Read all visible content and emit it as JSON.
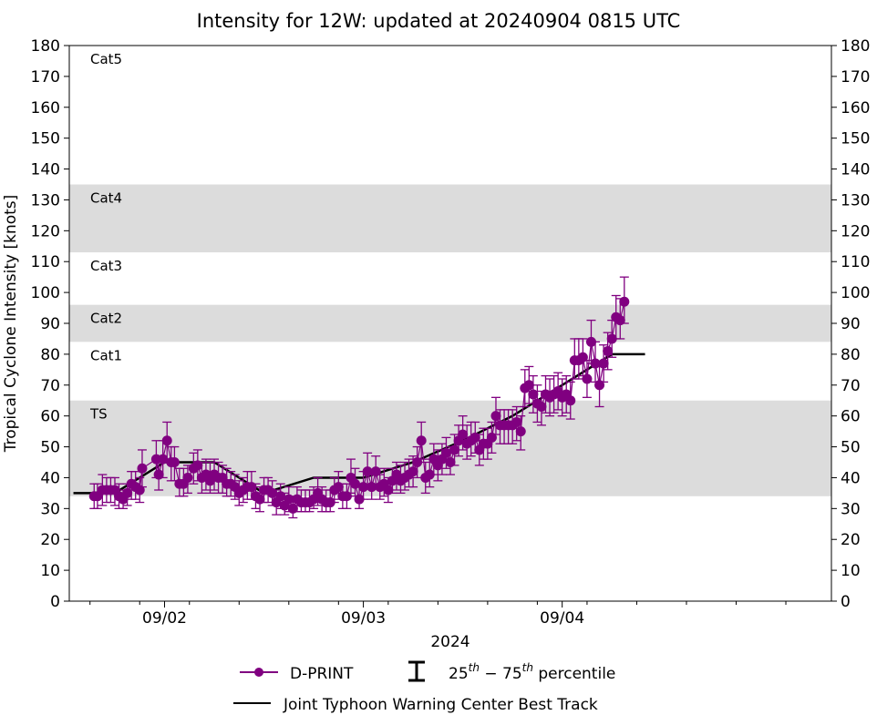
{
  "chart_data": {
    "type": "line",
    "title": "Intensity for 12W: updated at 20240904 0815 UTC",
    "xlabel": "2024",
    "ylabel": "Tropical Cyclone Intensity [knots]",
    "ylim": [
      0,
      180
    ],
    "yticks": [
      0,
      10,
      20,
      30,
      40,
      50,
      60,
      70,
      80,
      90,
      100,
      110,
      120,
      130,
      140,
      150,
      160,
      170,
      180
    ],
    "x_unit": "hours since 2024-09-01 00 UTC",
    "xlim": [
      12.5,
      104.5
    ],
    "xticks": [
      {
        "hour": 24,
        "label": "09/02"
      },
      {
        "hour": 48,
        "label": "09/03"
      },
      {
        "hour": 72,
        "label": "09/04"
      }
    ],
    "minor_xticks": [
      15,
      21,
      27,
      33,
      39,
      45,
      51,
      57,
      63,
      69,
      75,
      81,
      87,
      93,
      99,
      105
    ],
    "grid": false,
    "category_bands": [
      {
        "label": "TS",
        "min": 34,
        "max": 65,
        "shaded": true
      },
      {
        "label": "Cat1",
        "min": 65,
        "max": 84,
        "shaded": false
      },
      {
        "label": "Cat2",
        "min": 84,
        "max": 96,
        "shaded": true
      },
      {
        "label": "Cat3",
        "min": 96,
        "max": 113,
        "shaded": false
      },
      {
        "label": "Cat4",
        "min": 113,
        "max": 135,
        "shaded": true
      },
      {
        "label": "Cat5",
        "min": 135,
        "max": 180,
        "shaded": false
      }
    ],
    "band_color": "#dcdcdc",
    "legend": {
      "placement": "bottom-center",
      "entries": [
        {
          "label": "D-PRINT",
          "type": "line-marker"
        },
        {
          "label_main": "25",
          "label_sup1": "th",
          "label_mid": " − 75",
          "label_sup2": "th",
          "label_end": " percentile",
          "type": "errorbar"
        },
        {
          "label": "Joint Typhoon Warning Center Best Track",
          "type": "line"
        }
      ]
    },
    "series": [
      {
        "name": "Joint Typhoon Warning Center Best Track",
        "color": "#000000",
        "points": [
          [
            13,
            35
          ],
          [
            18,
            35
          ],
          [
            24,
            45
          ],
          [
            30,
            45
          ],
          [
            36,
            35
          ],
          [
            42,
            40
          ],
          [
            48,
            40
          ],
          [
            54,
            45
          ],
          [
            60,
            52
          ],
          [
            66,
            60
          ],
          [
            72,
            70
          ],
          [
            78,
            80
          ],
          [
            82,
            80
          ]
        ]
      },
      {
        "name": "D-PRINT",
        "color": "#800080",
        "points": [
          {
            "x": 15.5,
            "y": 34,
            "lo": 30,
            "hi": 38
          },
          {
            "x": 15.9,
            "y": 34,
            "lo": 30,
            "hi": 38
          },
          {
            "x": 16.5,
            "y": 36,
            "lo": 31,
            "hi": 41
          },
          {
            "x": 17.0,
            "y": 36,
            "lo": 32,
            "hi": 40
          },
          {
            "x": 17.5,
            "y": 36,
            "lo": 32,
            "hi": 40
          },
          {
            "x": 18.0,
            "y": 36,
            "lo": 31,
            "hi": 40
          },
          {
            "x": 18.5,
            "y": 34,
            "lo": 30,
            "hi": 38
          },
          {
            "x": 19.0,
            "y": 33,
            "lo": 30,
            "hi": 36
          },
          {
            "x": 19.5,
            "y": 35,
            "lo": 31,
            "hi": 38
          },
          {
            "x": 20.0,
            "y": 38,
            "lo": 33,
            "hi": 42
          },
          {
            "x": 20.5,
            "y": 37,
            "lo": 33,
            "hi": 42
          },
          {
            "x": 21.0,
            "y": 36,
            "lo": 32,
            "hi": 40
          },
          {
            "x": 21.3,
            "y": 43,
            "lo": 37,
            "hi": 49
          },
          {
            "x": 23.0,
            "y": 46,
            "lo": 40,
            "hi": 52
          },
          {
            "x": 23.3,
            "y": 41,
            "lo": 36,
            "hi": 46
          },
          {
            "x": 23.8,
            "y": 46,
            "lo": 40,
            "hi": 52
          },
          {
            "x": 24.3,
            "y": 52,
            "lo": 46,
            "hi": 58
          },
          {
            "x": 24.8,
            "y": 45,
            "lo": 39,
            "hi": 50
          },
          {
            "x": 25.2,
            "y": 45,
            "lo": 39,
            "hi": 50
          },
          {
            "x": 25.8,
            "y": 38,
            "lo": 34,
            "hi": 43
          },
          {
            "x": 26.3,
            "y": 38,
            "lo": 34,
            "hi": 43
          },
          {
            "x": 26.8,
            "y": 40,
            "lo": 35,
            "hi": 44
          },
          {
            "x": 27.5,
            "y": 43,
            "lo": 38,
            "hi": 48
          },
          {
            "x": 28.0,
            "y": 44,
            "lo": 39,
            "hi": 49
          },
          {
            "x": 28.5,
            "y": 40,
            "lo": 35,
            "hi": 45
          },
          {
            "x": 29.0,
            "y": 41,
            "lo": 36,
            "hi": 46
          },
          {
            "x": 29.5,
            "y": 39,
            "lo": 35,
            "hi": 45
          },
          {
            "x": 30.0,
            "y": 41,
            "lo": 36,
            "hi": 46
          },
          {
            "x": 30.5,
            "y": 40,
            "lo": 35,
            "hi": 45
          },
          {
            "x": 31.0,
            "y": 40,
            "lo": 35,
            "hi": 44
          },
          {
            "x": 31.5,
            "y": 38,
            "lo": 34,
            "hi": 43
          },
          {
            "x": 32.0,
            "y": 38,
            "lo": 34,
            "hi": 42
          },
          {
            "x": 32.5,
            "y": 37,
            "lo": 33,
            "hi": 41
          },
          {
            "x": 33.0,
            "y": 35,
            "lo": 31,
            "hi": 39
          },
          {
            "x": 33.5,
            "y": 36,
            "lo": 32,
            "hi": 40
          },
          {
            "x": 34.0,
            "y": 37,
            "lo": 33,
            "hi": 42
          },
          {
            "x": 34.5,
            "y": 37,
            "lo": 33,
            "hi": 42
          },
          {
            "x": 35.0,
            "y": 34,
            "lo": 30,
            "hi": 38
          },
          {
            "x": 35.5,
            "y": 33,
            "lo": 29,
            "hi": 37
          },
          {
            "x": 36.0,
            "y": 36,
            "lo": 32,
            "hi": 40
          },
          {
            "x": 36.5,
            "y": 36,
            "lo": 32,
            "hi": 40
          },
          {
            "x": 37.0,
            "y": 35,
            "lo": 31,
            "hi": 39
          },
          {
            "x": 37.5,
            "y": 32,
            "lo": 28,
            "hi": 36
          },
          {
            "x": 38.0,
            "y": 34,
            "lo": 30,
            "hi": 38
          },
          {
            "x": 38.5,
            "y": 31,
            "lo": 28,
            "hi": 35
          },
          {
            "x": 39.0,
            "y": 33,
            "lo": 29,
            "hi": 37
          },
          {
            "x": 39.5,
            "y": 30,
            "lo": 27,
            "hi": 34
          },
          {
            "x": 40.0,
            "y": 33,
            "lo": 29,
            "hi": 37
          },
          {
            "x": 40.5,
            "y": 32,
            "lo": 29,
            "hi": 36
          },
          {
            "x": 41.0,
            "y": 32,
            "lo": 29,
            "hi": 36
          },
          {
            "x": 41.5,
            "y": 32,
            "lo": 29,
            "hi": 36
          },
          {
            "x": 42.0,
            "y": 33,
            "lo": 30,
            "hi": 37
          },
          {
            "x": 42.5,
            "y": 35,
            "lo": 31,
            "hi": 40
          },
          {
            "x": 43.0,
            "y": 33,
            "lo": 29,
            "hi": 37
          },
          {
            "x": 43.5,
            "y": 32,
            "lo": 29,
            "hi": 36
          },
          {
            "x": 44.0,
            "y": 32,
            "lo": 29,
            "hi": 36
          },
          {
            "x": 44.5,
            "y": 36,
            "lo": 32,
            "hi": 40
          },
          {
            "x": 45.0,
            "y": 37,
            "lo": 33,
            "hi": 42
          },
          {
            "x": 45.5,
            "y": 34,
            "lo": 30,
            "hi": 38
          },
          {
            "x": 46.0,
            "y": 34,
            "lo": 30,
            "hi": 38
          },
          {
            "x": 46.5,
            "y": 40,
            "lo": 35,
            "hi": 46
          },
          {
            "x": 47.0,
            "y": 38,
            "lo": 34,
            "hi": 43
          },
          {
            "x": 47.5,
            "y": 33,
            "lo": 30,
            "hi": 37
          },
          {
            "x": 48.0,
            "y": 37,
            "lo": 33,
            "hi": 42
          },
          {
            "x": 48.5,
            "y": 42,
            "lo": 37,
            "hi": 48
          },
          {
            "x": 49.0,
            "y": 37,
            "lo": 33,
            "hi": 41
          },
          {
            "x": 49.5,
            "y": 42,
            "lo": 37,
            "hi": 47
          },
          {
            "x": 50.0,
            "y": 37,
            "lo": 33,
            "hi": 41
          },
          {
            "x": 50.5,
            "y": 38,
            "lo": 34,
            "hi": 43
          },
          {
            "x": 51.0,
            "y": 36,
            "lo": 32,
            "hi": 40
          },
          {
            "x": 51.5,
            "y": 39,
            "lo": 35,
            "hi": 43
          },
          {
            "x": 52.0,
            "y": 41,
            "lo": 36,
            "hi": 45
          },
          {
            "x": 52.5,
            "y": 39,
            "lo": 35,
            "hi": 44
          },
          {
            "x": 53.0,
            "y": 40,
            "lo": 36,
            "hi": 45
          },
          {
            "x": 53.5,
            "y": 41,
            "lo": 37,
            "hi": 46
          },
          {
            "x": 54.0,
            "y": 42,
            "lo": 37,
            "hi": 47
          },
          {
            "x": 54.5,
            "y": 45,
            "lo": 40,
            "hi": 50
          },
          {
            "x": 55.0,
            "y": 52,
            "lo": 46,
            "hi": 58
          },
          {
            "x": 55.5,
            "y": 40,
            "lo": 35,
            "hi": 45
          },
          {
            "x": 56.0,
            "y": 41,
            "lo": 37,
            "hi": 46
          },
          {
            "x": 56.5,
            "y": 46,
            "lo": 41,
            "hi": 51
          },
          {
            "x": 57.0,
            "y": 44,
            "lo": 39,
            "hi": 49
          },
          {
            "x": 57.5,
            "y": 46,
            "lo": 41,
            "hi": 51
          },
          {
            "x": 58.0,
            "y": 48,
            "lo": 43,
            "hi": 53
          },
          {
            "x": 58.5,
            "y": 45,
            "lo": 41,
            "hi": 50
          },
          {
            "x": 59.0,
            "y": 49,
            "lo": 44,
            "hi": 54
          },
          {
            "x": 59.5,
            "y": 52,
            "lo": 47,
            "hi": 57
          },
          {
            "x": 60.0,
            "y": 54,
            "lo": 49,
            "hi": 60
          },
          {
            "x": 60.5,
            "y": 51,
            "lo": 46,
            "hi": 57
          },
          {
            "x": 61.0,
            "y": 52,
            "lo": 47,
            "hi": 58
          },
          {
            "x": 61.5,
            "y": 53,
            "lo": 48,
            "hi": 58
          },
          {
            "x": 62.0,
            "y": 49,
            "lo": 44,
            "hi": 54
          },
          {
            "x": 62.5,
            "y": 51,
            "lo": 46,
            "hi": 56
          },
          {
            "x": 63.0,
            "y": 51,
            "lo": 46,
            "hi": 56
          },
          {
            "x": 63.5,
            "y": 53,
            "lo": 48,
            "hi": 58
          },
          {
            "x": 64.0,
            "y": 60,
            "lo": 54,
            "hi": 66
          },
          {
            "x": 64.5,
            "y": 57,
            "lo": 51,
            "hi": 62
          },
          {
            "x": 65.0,
            "y": 57,
            "lo": 51,
            "hi": 62
          },
          {
            "x": 65.5,
            "y": 57,
            "lo": 51,
            "hi": 62
          },
          {
            "x": 66.0,
            "y": 57,
            "lo": 51,
            "hi": 62
          },
          {
            "x": 66.5,
            "y": 58,
            "lo": 52,
            "hi": 63
          },
          {
            "x": 67.0,
            "y": 55,
            "lo": 49,
            "hi": 60
          },
          {
            "x": 67.5,
            "y": 69,
            "lo": 63,
            "hi": 75
          },
          {
            "x": 68.0,
            "y": 70,
            "lo": 64,
            "hi": 76
          },
          {
            "x": 68.5,
            "y": 67,
            "lo": 61,
            "hi": 73
          },
          {
            "x": 69.0,
            "y": 64,
            "lo": 58,
            "hi": 70
          },
          {
            "x": 69.5,
            "y": 63,
            "lo": 57,
            "hi": 68
          },
          {
            "x": 70.0,
            "y": 67,
            "lo": 61,
            "hi": 73
          },
          {
            "x": 70.5,
            "y": 66,
            "lo": 60,
            "hi": 72
          },
          {
            "x": 71.0,
            "y": 67,
            "lo": 61,
            "hi": 73
          },
          {
            "x": 71.5,
            "y": 68,
            "lo": 62,
            "hi": 74
          },
          {
            "x": 72.0,
            "y": 66,
            "lo": 60,
            "hi": 72
          },
          {
            "x": 72.5,
            "y": 67,
            "lo": 61,
            "hi": 73
          },
          {
            "x": 73.0,
            "y": 65,
            "lo": 59,
            "hi": 71
          },
          {
            "x": 73.5,
            "y": 78,
            "lo": 72,
            "hi": 85
          },
          {
            "x": 74.0,
            "y": 78,
            "lo": 72,
            "hi": 85
          },
          {
            "x": 74.5,
            "y": 79,
            "lo": 73,
            "hi": 85
          },
          {
            "x": 75.0,
            "y": 72,
            "lo": 66,
            "hi": 78
          },
          {
            "x": 75.5,
            "y": 84,
            "lo": 77,
            "hi": 91
          },
          {
            "x": 76.0,
            "y": 77,
            "lo": 71,
            "hi": 84
          },
          {
            "x": 76.5,
            "y": 70,
            "lo": 63,
            "hi": 76
          },
          {
            "x": 77.0,
            "y": 77,
            "lo": 71,
            "hi": 83
          },
          {
            "x": 77.5,
            "y": 81,
            "lo": 75,
            "hi": 87
          },
          {
            "x": 78.0,
            "y": 85,
            "lo": 79,
            "hi": 91
          },
          {
            "x": 78.5,
            "y": 92,
            "lo": 85,
            "hi": 99
          },
          {
            "x": 79.0,
            "y": 91,
            "lo": 85,
            "hi": 98
          },
          {
            "x": 79.5,
            "y": 97,
            "lo": 90,
            "hi": 105
          }
        ]
      }
    ]
  }
}
